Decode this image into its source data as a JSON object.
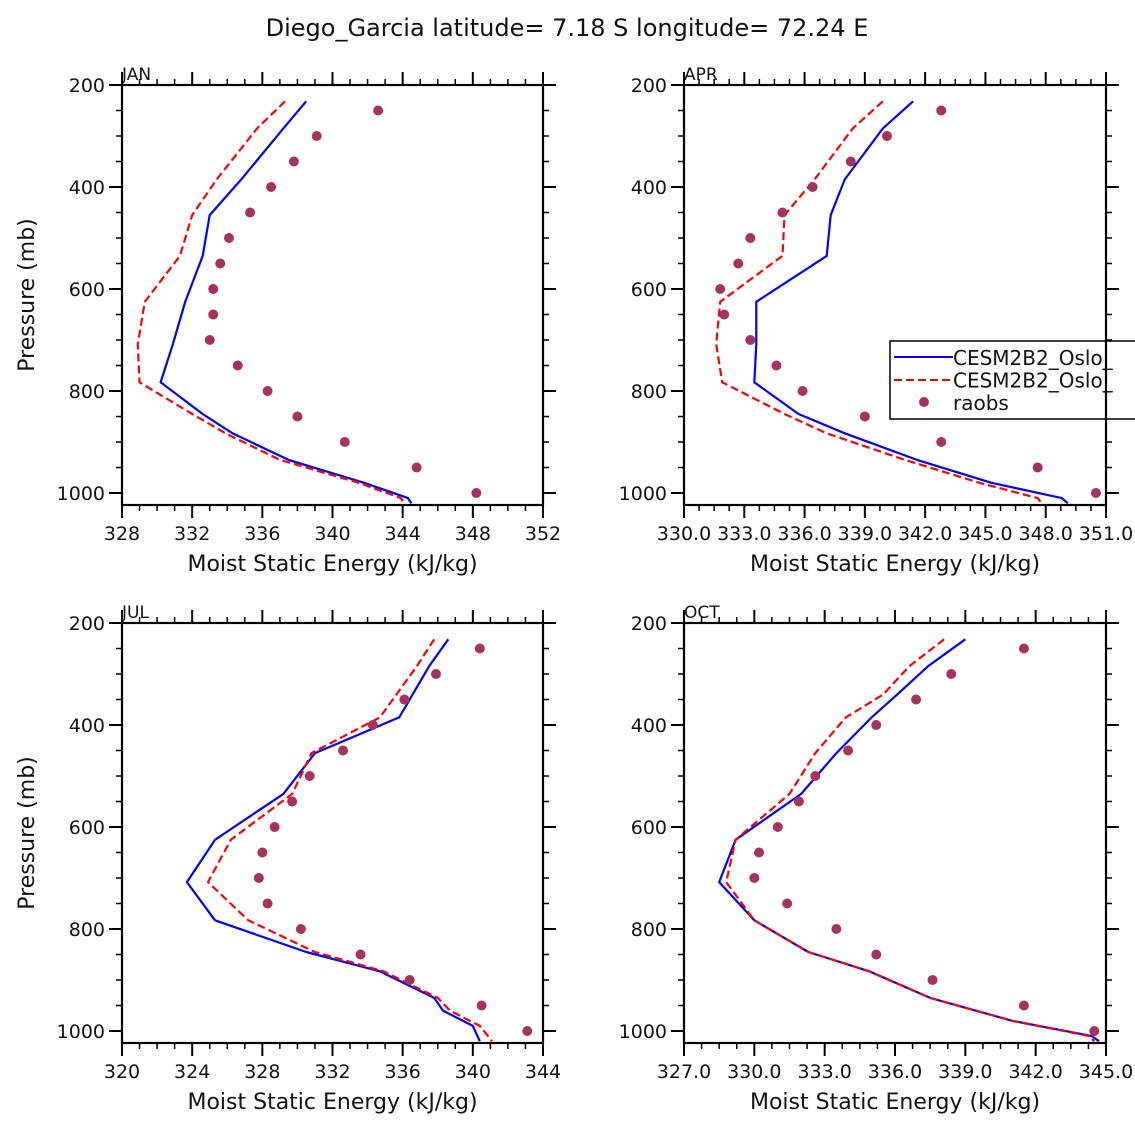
{
  "chart_data": {
    "type": "line",
    "title": "Diego_Garcia  latitude= 7.18 S longitude= 72.24 E",
    "legend": {
      "placement": "right-middle of APR panel (clipped)",
      "entries": [
        {
          "label": "CESM2B2_Oslo_",
          "style": "solid",
          "color": "#0000ff"
        },
        {
          "label": "CESM2B2_Oslo_",
          "style": "dashed",
          "color": "#ff0000"
        },
        {
          "label": "raobs",
          "style": "marker",
          "color": "#a8325e"
        }
      ]
    },
    "colors": {
      "model_solid": "#0000ff",
      "model_dashed": "#ff0000",
      "raobs": "#a8325e",
      "axes": "#000000"
    },
    "panels": [
      {
        "label": "JAN",
        "xlabel": "Moist Static Energy (kJ/kg)",
        "ylabel": "Pressure (mb)",
        "xlim": [
          328,
          352
        ],
        "ylim": [
          1023.5,
          200
        ],
        "xticks": [
          328,
          332,
          336,
          340,
          344,
          348,
          352
        ],
        "xtick_labels": [
          "328",
          "332",
          "336",
          "340",
          "344",
          "348",
          "352"
        ],
        "yticks": [
          200,
          400,
          600,
          800,
          1000
        ],
        "ytick_labels": [
          "200",
          "400",
          "600",
          "800",
          "1000"
        ],
        "show_ylabel": true,
        "series": [
          {
            "name": "CESM2B2_Oslo_ (solid)",
            "style": "solid",
            "p": [
              232,
              285,
              385,
              455,
              535,
              625,
              708,
              783,
              845,
              883,
              935,
              980,
              1010,
              1020
            ],
            "x": [
              338.5,
              337.2,
              334.8,
              333.0,
              332.6,
              331.6,
              330.9,
              330.2,
              332.6,
              334.3,
              337.5,
              341.8,
              344.3,
              344.5
            ]
          },
          {
            "name": "CESM2B2_Oslo_ (dashed)",
            "style": "dashed",
            "p": [
              232,
              285,
              385,
              455,
              535,
              625,
              708,
              783,
              845,
              883,
              935,
              980,
              1010,
              1020
            ],
            "x": [
              337.3,
              335.7,
              333.4,
              332.0,
              331.3,
              329.3,
              328.9,
              329.0,
              332.0,
              333.9,
              337.0,
              341.5,
              343.9,
              344.1
            ]
          }
        ],
        "raobs": {
          "p": [
            250,
            300,
            350,
            400,
            450,
            500,
            550,
            600,
            650,
            700,
            750,
            800,
            850,
            900,
            950,
            1000
          ],
          "x": [
            342.6,
            339.1,
            337.8,
            336.5,
            335.3,
            334.1,
            333.6,
            333.2,
            333.2,
            333.0,
            334.6,
            336.3,
            338.0,
            340.7,
            344.8,
            348.2
          ]
        }
      },
      {
        "label": "APR",
        "xlabel": "Moist Static Energy (kJ/kg)",
        "ylabel": "",
        "xlim": [
          330.0,
          351.0
        ],
        "ylim": [
          1023.5,
          200
        ],
        "xticks": [
          330,
          333,
          336,
          339,
          342,
          345,
          348,
          351
        ],
        "xtick_labels": [
          "330.0",
          "333.0",
          "336.0",
          "339.0",
          "342.0",
          "345.0",
          "348.0",
          "351.0"
        ],
        "yticks": [
          200,
          400,
          600,
          800,
          1000
        ],
        "ytick_labels": [
          "200",
          "400",
          "600",
          "800",
          "1000"
        ],
        "show_ylabel": false,
        "series": [
          {
            "name": "CESM2B2_Oslo_ (solid)",
            "style": "solid",
            "p": [
              232,
              285,
              385,
              455,
              535,
              625,
              708,
              783,
              845,
              883,
              935,
              980,
              1010,
              1020
            ],
            "x": [
              341.4,
              339.9,
              338.0,
              337.3,
              337.1,
              333.6,
              333.6,
              333.5,
              335.7,
              338.0,
              341.6,
              345.3,
              348.8,
              349.1
            ]
          },
          {
            "name": "CESM2B2_Oslo_ (dashed)",
            "style": "dashed",
            "p": [
              232,
              285,
              385,
              455,
              535,
              625,
              708,
              783,
              845,
              883,
              935,
              980,
              1010,
              1020
            ],
            "x": [
              339.9,
              338.4,
              336.5,
              335.0,
              334.9,
              331.8,
              331.6,
              331.9,
              335.0,
              337.1,
              341.0,
              344.7,
              347.6,
              347.8
            ]
          },
          {
            "name": "raobs",
            "style": "marker",
            "p": [],
            "x": []
          }
        ],
        "raobs": {
          "p": [
            250,
            300,
            350,
            400,
            450,
            500,
            550,
            600,
            650,
            700,
            750,
            800,
            850,
            900,
            950,
            1000
          ],
          "x": [
            342.8,
            340.1,
            338.3,
            336.4,
            334.9,
            333.3,
            332.7,
            331.8,
            332.0,
            333.3,
            334.6,
            335.9,
            339.0,
            342.8,
            347.6,
            350.5
          ]
        }
      },
      {
        "label": "JUL",
        "xlabel": "Moist Static Energy (kJ/kg)",
        "ylabel": "Pressure (mb)",
        "xlim": [
          320,
          344
        ],
        "ylim": [
          1023.5,
          200
        ],
        "xticks": [
          320,
          324,
          328,
          332,
          336,
          340,
          344
        ],
        "xtick_labels": [
          "320",
          "324",
          "328",
          "332",
          "336",
          "340",
          "344"
        ],
        "yticks": [
          200,
          400,
          600,
          800,
          1000
        ],
        "ytick_labels": [
          "200",
          "400",
          "600",
          "800",
          "1000"
        ],
        "show_ylabel": true,
        "series": [
          {
            "name": "CESM2B2_Oslo_ (solid)",
            "style": "solid",
            "p": [
              232,
              285,
              385,
              455,
              535,
              625,
              708,
              783,
              845,
              883,
              935,
              960,
              990,
              1020
            ],
            "x": [
              338.6,
              337.5,
              335.8,
              331.0,
              329.2,
              325.3,
              323.7,
              325.3,
              330.5,
              334.7,
              337.8,
              338.3,
              340.0,
              340.4
            ]
          },
          {
            "name": "CESM2B2_Oslo_ (dashed)",
            "style": "dashed",
            "p": [
              232,
              285,
              385,
              455,
              535,
              625,
              708,
              783,
              845,
              883,
              935,
              960,
              990,
              1020
            ],
            "x": [
              337.8,
              336.8,
              334.7,
              330.8,
              329.7,
              326.2,
              324.9,
              327.2,
              331.0,
              334.9,
              338.0,
              338.7,
              340.4,
              341.1
            ]
          }
        ],
        "raobs": {
          "p": [
            250,
            300,
            350,
            400,
            450,
            500,
            550,
            600,
            650,
            700,
            750,
            800,
            850,
            900,
            950,
            1000
          ],
          "x": [
            340.4,
            337.9,
            336.1,
            334.3,
            332.6,
            330.7,
            329.7,
            328.7,
            328.0,
            327.8,
            328.3,
            330.2,
            333.6,
            336.4,
            340.5,
            343.1
          ]
        }
      },
      {
        "label": "OCT",
        "xlabel": "Moist Static Energy (kJ/kg)",
        "ylabel": "",
        "xlim": [
          327.0,
          345.0
        ],
        "ylim": [
          1023.5,
          200
        ],
        "xticks": [
          327,
          330,
          333,
          336,
          339,
          342,
          345
        ],
        "xtick_labels": [
          "327.0",
          "330.0",
          "333.0",
          "336.0",
          "339.0",
          "342.0",
          "345.0"
        ],
        "yticks": [
          200,
          400,
          600,
          800,
          1000
        ],
        "ytick_labels": [
          "200",
          "400",
          "600",
          "800",
          "1000"
        ],
        "show_ylabel": false,
        "series": [
          {
            "name": "CESM2B2_Oslo_ (solid)",
            "style": "solid",
            "p": [
              232,
              285,
              340,
              385,
              455,
              535,
              625,
              708,
              783,
              845,
              883,
              935,
              980,
              1010,
              1020
            ],
            "x": [
              339.0,
              337.4,
              336.1,
              335.0,
              333.5,
              332.0,
              329.2,
              328.5,
              330.0,
              332.3,
              334.9,
              337.5,
              341.0,
              344.4,
              344.7
            ]
          },
          {
            "name": "CESM2B2_Oslo_ (dashed)",
            "style": "dashed",
            "p": [
              232,
              285,
              340,
              385,
              455,
              535,
              625,
              708,
              783,
              845,
              883,
              935,
              980,
              1010,
              1020
            ],
            "x": [
              338.1,
              336.6,
              335.5,
              333.9,
              332.6,
              331.5,
              329.2,
              328.8,
              330.0,
              332.3,
              334.9,
              337.5,
              341.0,
              344.3,
              344.5
            ]
          }
        ],
        "raobs": {
          "p": [
            250,
            300,
            350,
            400,
            450,
            500,
            550,
            600,
            650,
            700,
            750,
            800,
            850,
            900,
            950,
            1000
          ],
          "x": [
            341.5,
            338.4,
            336.9,
            335.2,
            334.0,
            332.6,
            331.9,
            331.0,
            330.2,
            330.0,
            331.4,
            333.5,
            335.2,
            337.6,
            341.5,
            344.5
          ]
        }
      }
    ]
  }
}
